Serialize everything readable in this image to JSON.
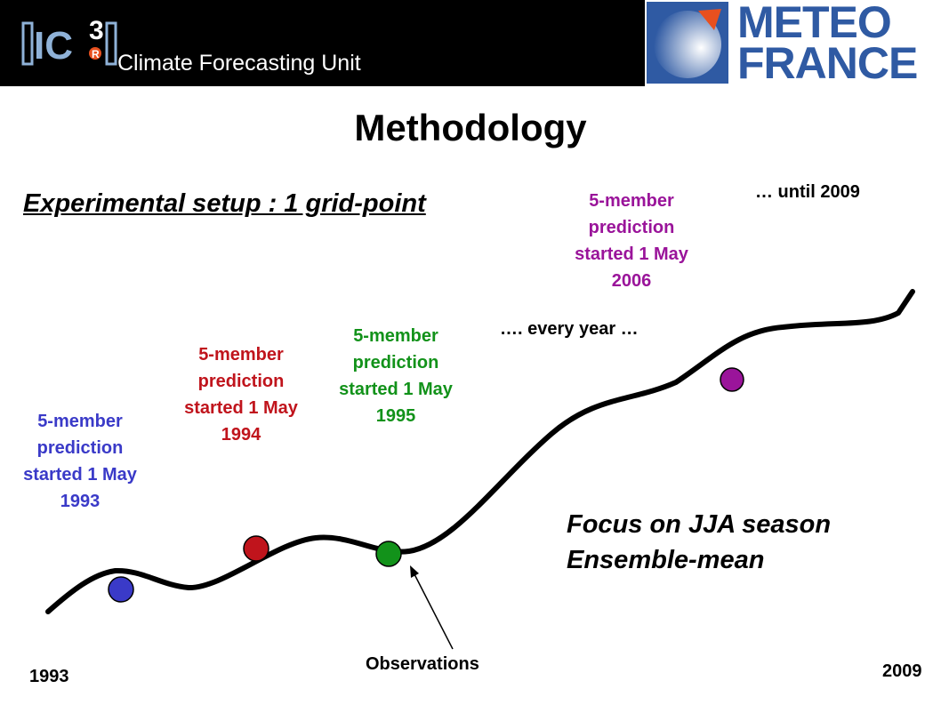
{
  "header": {
    "logo_text": "IC3",
    "unit_label": "Climate Forecasting Unit",
    "partner_logo_line1": "METEO",
    "partner_logo_line2": "FRANCE"
  },
  "title": "Methodology",
  "setup_heading": "Experimental setup : 1 grid-point",
  "annotations": [
    {
      "lines": [
        "5-member",
        "prediction",
        "started 1 May",
        "1993"
      ],
      "color": "#3a3ac8"
    },
    {
      "lines": [
        "5-member",
        "prediction",
        "started 1 May",
        "1994"
      ],
      "color": "#c0141c"
    },
    {
      "lines": [
        "5-member",
        "prediction",
        "started 1 May",
        "1995"
      ],
      "color": "#12921a"
    },
    {
      "lines": [
        "5-member",
        "prediction",
        "started 1 May",
        "2006"
      ],
      "color": "#9a149a"
    }
  ],
  "every_year_note": "…. every year …",
  "until_note": "… until 2009",
  "focus": {
    "line1": "Focus on JJA season",
    "line2": "Ensemble-mean"
  },
  "observations_label": "Observations",
  "axis": {
    "start_label": "1993",
    "end_label": "2009"
  },
  "colors": {
    "blue": "#3a3ac8",
    "red": "#c0141c",
    "green": "#12921a",
    "purple": "#9a149a",
    "meteo_blue": "#2f5aa3",
    "meteo_orange": "#e8501f"
  },
  "icons": {
    "ic3_logo": "ic3-logo-icon",
    "meteo_france_logo": "meteo-france-logo-icon",
    "observations_arrow": "arrow-icon"
  }
}
